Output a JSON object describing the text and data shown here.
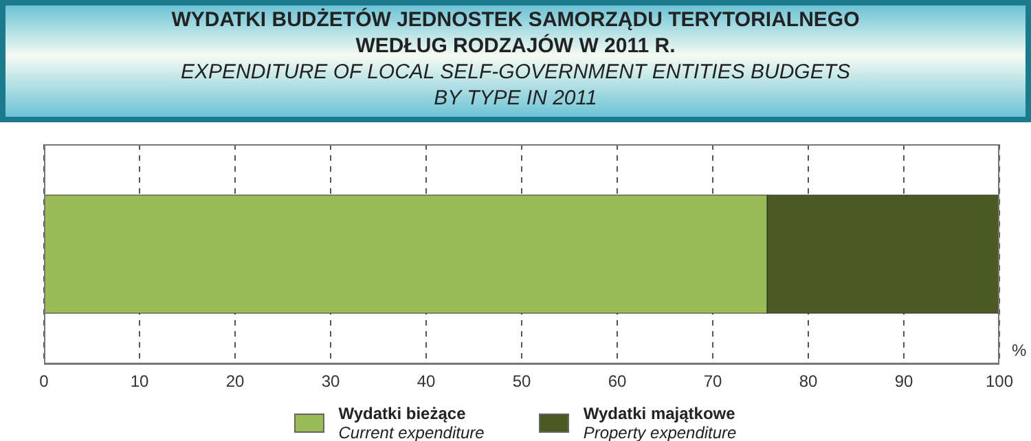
{
  "chart_data": {
    "type": "bar",
    "orientation": "horizontal",
    "stacked": true,
    "title": "WYDATKI BUDŻETÓW JEDNOSTEK SAMORZĄDU TERYTORIALNEGO\nWEDŁUG RODZAJÓW W 2011 R.",
    "subtitle": "EXPENDITURE OF LOCAL SELF-GOVERNMENT ENTITIES BUDGETS\nBY TYPE IN 2011",
    "xlabel": "%",
    "categories": [
      null
    ],
    "series": [
      {
        "name": "Wydatki bieżące\nCurrent expenditure",
        "color": "#9bbb59",
        "values": [
          75.7
        ]
      },
      {
        "name": "Wydatki majątkowe\nProperty expenditure",
        "color": "#4a5a22",
        "values": [
          24.3
        ]
      }
    ],
    "xlim": [
      0,
      100
    ],
    "xticks": [
      0,
      10,
      20,
      30,
      40,
      50,
      60,
      70,
      80,
      90,
      100
    ],
    "grid": "x",
    "legend": "bottom"
  }
}
